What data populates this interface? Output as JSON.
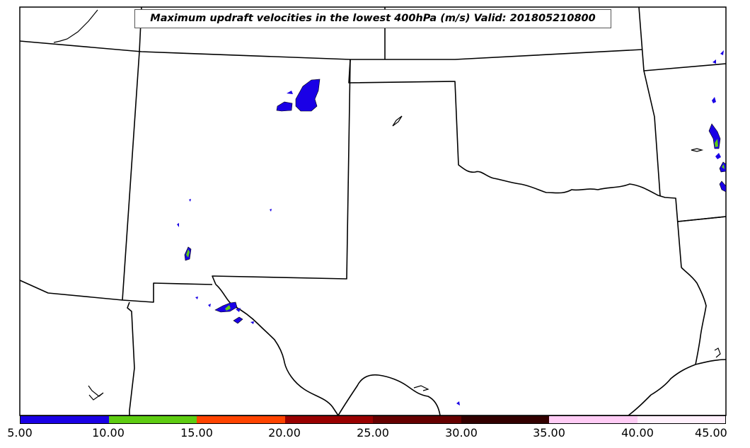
{
  "title": "Maximum updraft velocities in the lowest 400hPa (m/s) Valid: 201805210800",
  "colorbar": {
    "units": "m/s",
    "ticks": [
      "5.00",
      "10.00",
      "15.00",
      "20.00",
      "25.00",
      "30.00",
      "35.00",
      "40.00",
      "45.00"
    ],
    "colors": [
      "#1a00e6",
      "#5ecc12",
      "#ff4400",
      "#990000",
      "#660000",
      "#330000",
      "#ffccf5",
      "#fff0fc"
    ]
  },
  "chart_data": {
    "type": "heatmap",
    "title": "Maximum updraft velocities in the lowest 400hPa (m/s) Valid: 201805210800",
    "colorbar_range": [
      5,
      45
    ],
    "colorbar_levels": [
      5,
      10,
      15,
      20,
      25,
      30,
      35,
      40,
      45
    ],
    "basemap": "US state boundaries: Texas, Oklahoma, New Mexico, Colorado, Kansas, Arkansas, Louisiana, Arizona; coastline of the Gulf of Mexico",
    "cells_max_level_band": "5-10 m/s with isolated 10-15 m/s cores"
  }
}
